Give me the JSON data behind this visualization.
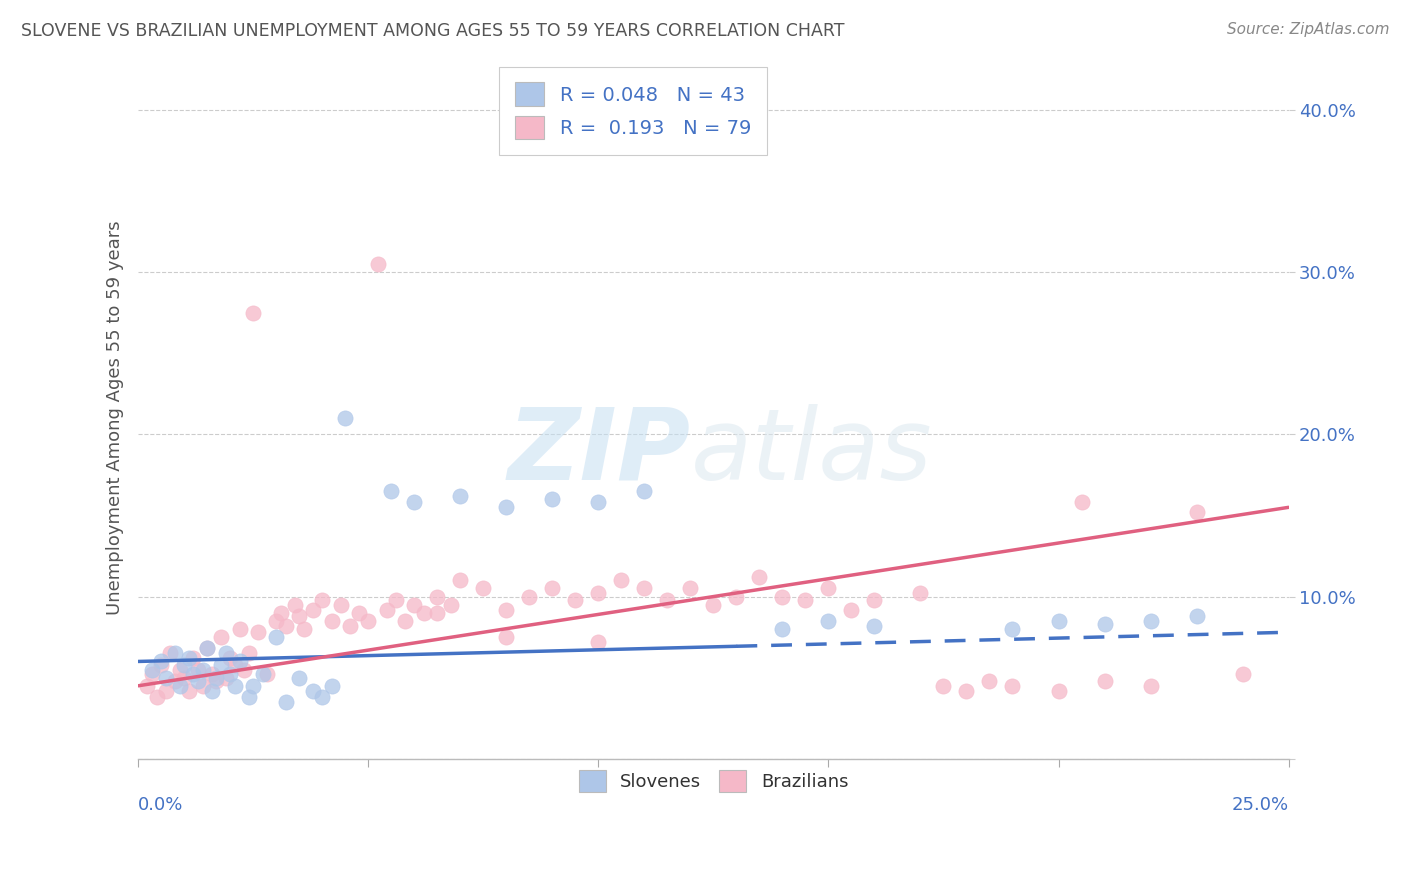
{
  "title": "SLOVENE VS BRAZILIAN UNEMPLOYMENT AMONG AGES 55 TO 59 YEARS CORRELATION CHART",
  "source": "Source: ZipAtlas.com",
  "ylabel": "Unemployment Among Ages 55 to 59 years",
  "xlim": [
    0.0,
    25.0
  ],
  "ylim": [
    0.0,
    42.0
  ],
  "yticks": [
    0,
    10,
    20,
    30,
    40
  ],
  "ytick_labels": [
    "",
    "10.0%",
    "20.0%",
    "30.0%",
    "40.0%"
  ],
  "R_slovene": 0.048,
  "N_slovene": 43,
  "R_brazilian": 0.193,
  "N_brazilian": 79,
  "slovene_color": "#aec6e8",
  "brazilian_color": "#f5b8c8",
  "slovene_line_color": "#4472c4",
  "brazilian_line_color": "#e06080",
  "title_color": "#555555",
  "source_color": "#888888",
  "label_color": "#4472c4",
  "slovene_scatter": [
    [
      0.3,
      5.5
    ],
    [
      0.5,
      6.0
    ],
    [
      0.6,
      5.0
    ],
    [
      0.8,
      6.5
    ],
    [
      0.9,
      4.5
    ],
    [
      1.0,
      5.8
    ],
    [
      1.1,
      6.2
    ],
    [
      1.2,
      5.2
    ],
    [
      1.3,
      4.8
    ],
    [
      1.4,
      5.5
    ],
    [
      1.5,
      6.8
    ],
    [
      1.6,
      4.2
    ],
    [
      1.7,
      5.0
    ],
    [
      1.8,
      5.8
    ],
    [
      1.9,
      6.5
    ],
    [
      2.0,
      5.2
    ],
    [
      2.1,
      4.5
    ],
    [
      2.2,
      6.0
    ],
    [
      2.4,
      3.8
    ],
    [
      2.5,
      4.5
    ],
    [
      2.7,
      5.2
    ],
    [
      3.0,
      7.5
    ],
    [
      3.2,
      3.5
    ],
    [
      3.5,
      5.0
    ],
    [
      3.8,
      4.2
    ],
    [
      4.0,
      3.8
    ],
    [
      4.2,
      4.5
    ],
    [
      4.5,
      21.0
    ],
    [
      5.5,
      16.5
    ],
    [
      6.0,
      15.8
    ],
    [
      7.0,
      16.2
    ],
    [
      8.0,
      15.5
    ],
    [
      9.0,
      16.0
    ],
    [
      10.0,
      15.8
    ],
    [
      11.0,
      16.5
    ],
    [
      14.0,
      8.0
    ],
    [
      15.0,
      8.5
    ],
    [
      16.0,
      8.2
    ],
    [
      19.0,
      8.0
    ],
    [
      20.0,
      8.5
    ],
    [
      21.0,
      8.3
    ],
    [
      22.0,
      8.5
    ],
    [
      23.0,
      8.8
    ]
  ],
  "brazilian_scatter": [
    [
      0.2,
      4.5
    ],
    [
      0.3,
      5.2
    ],
    [
      0.4,
      3.8
    ],
    [
      0.5,
      5.8
    ],
    [
      0.6,
      4.2
    ],
    [
      0.7,
      6.5
    ],
    [
      0.8,
      4.8
    ],
    [
      0.9,
      5.5
    ],
    [
      1.0,
      5.0
    ],
    [
      1.1,
      4.2
    ],
    [
      1.2,
      6.2
    ],
    [
      1.3,
      5.5
    ],
    [
      1.4,
      4.5
    ],
    [
      1.5,
      6.8
    ],
    [
      1.6,
      5.2
    ],
    [
      1.7,
      4.8
    ],
    [
      1.8,
      7.5
    ],
    [
      1.9,
      5.0
    ],
    [
      2.0,
      6.2
    ],
    [
      2.1,
      5.8
    ],
    [
      2.2,
      8.0
    ],
    [
      2.3,
      5.5
    ],
    [
      2.4,
      6.5
    ],
    [
      2.5,
      27.5
    ],
    [
      2.6,
      7.8
    ],
    [
      2.8,
      5.2
    ],
    [
      3.0,
      8.5
    ],
    [
      3.1,
      9.0
    ],
    [
      3.2,
      8.2
    ],
    [
      3.4,
      9.5
    ],
    [
      3.5,
      8.8
    ],
    [
      3.6,
      8.0
    ],
    [
      3.8,
      9.2
    ],
    [
      4.0,
      9.8
    ],
    [
      4.2,
      8.5
    ],
    [
      4.4,
      9.5
    ],
    [
      4.6,
      8.2
    ],
    [
      4.8,
      9.0
    ],
    [
      5.0,
      8.5
    ],
    [
      5.2,
      30.5
    ],
    [
      5.4,
      9.2
    ],
    [
      5.6,
      9.8
    ],
    [
      5.8,
      8.5
    ],
    [
      6.0,
      9.5
    ],
    [
      6.2,
      9.0
    ],
    [
      6.5,
      10.0
    ],
    [
      6.8,
      9.5
    ],
    [
      7.0,
      11.0
    ],
    [
      7.5,
      10.5
    ],
    [
      8.0,
      9.2
    ],
    [
      8.5,
      10.0
    ],
    [
      9.0,
      10.5
    ],
    [
      9.5,
      9.8
    ],
    [
      10.0,
      10.2
    ],
    [
      10.5,
      11.0
    ],
    [
      11.0,
      10.5
    ],
    [
      11.5,
      9.8
    ],
    [
      12.0,
      10.5
    ],
    [
      12.5,
      9.5
    ],
    [
      13.0,
      10.0
    ],
    [
      13.5,
      11.2
    ],
    [
      14.0,
      10.0
    ],
    [
      14.5,
      9.8
    ],
    [
      15.0,
      10.5
    ],
    [
      15.5,
      9.2
    ],
    [
      16.0,
      9.8
    ],
    [
      17.0,
      10.2
    ],
    [
      17.5,
      4.5
    ],
    [
      18.0,
      4.2
    ],
    [
      18.5,
      4.8
    ],
    [
      19.0,
      4.5
    ],
    [
      20.0,
      4.2
    ],
    [
      20.5,
      15.8
    ],
    [
      21.0,
      4.8
    ],
    [
      22.0,
      4.5
    ],
    [
      23.0,
      15.2
    ],
    [
      24.0,
      5.2
    ],
    [
      6.5,
      9.0
    ],
    [
      8.0,
      7.5
    ],
    [
      10.0,
      7.2
    ]
  ]
}
